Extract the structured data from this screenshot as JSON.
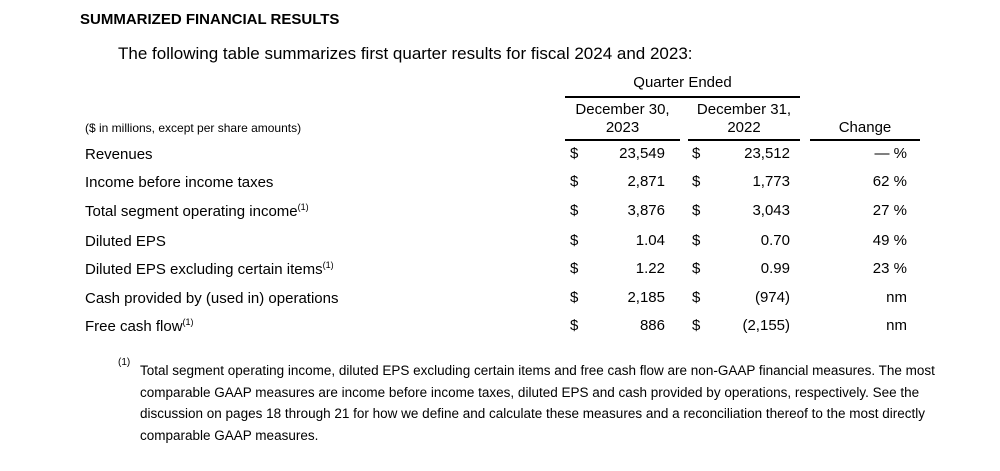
{
  "title": "SUMMARIZED FINANCIAL RESULTS",
  "subtitle": "The following table summarizes first quarter results for fiscal 2024 and 2023:",
  "table": {
    "group_header": "Quarter Ended",
    "col1": {
      "line1": "December 30,",
      "line2": "2023"
    },
    "col2": {
      "line1": "December 31,",
      "line2": "2022"
    },
    "col3": "Change",
    "units": "($ in millions, except per share amounts)",
    "rows": [
      {
        "label": "Revenues",
        "fn": "",
        "c1": "$",
        "v1": "23,549",
        "c2": "$",
        "v2": "23,512",
        "change": "— %"
      },
      {
        "label": "Income before income taxes",
        "fn": "",
        "c1": "$",
        "v1": "2,871",
        "c2": "$",
        "v2": "1,773",
        "change": "62 %"
      },
      {
        "label": "Total segment operating income",
        "fn": "(1)",
        "c1": "$",
        "v1": "3,876",
        "c2": "$",
        "v2": "3,043",
        "change": "27 %"
      },
      {
        "label": "Diluted EPS",
        "fn": "",
        "c1": "$",
        "v1": "1.04",
        "c2": "$",
        "v2": "0.70",
        "change": "49 %"
      },
      {
        "label": "Diluted EPS excluding certain items",
        "fn": "(1)",
        "c1": "$",
        "v1": "1.22",
        "c2": "$",
        "v2": "0.99",
        "change": "23 %"
      },
      {
        "label": "Cash provided by (used in) operations",
        "fn": "",
        "c1": "$",
        "v1": "2,185",
        "c2": "$",
        "v2": "(974)",
        "change": "nm"
      },
      {
        "label": "Free cash flow",
        "fn": "(1)",
        "c1": "$",
        "v1": "886",
        "c2": "$",
        "v2": "(2,155)",
        "change": "nm"
      }
    ]
  },
  "footnote": {
    "marker": "(1)",
    "text": "Total segment operating income, diluted EPS excluding certain items and free cash flow are non-GAAP financial measures. The most comparable GAAP measures are income before income taxes, diluted EPS and cash provided by operations, respectively. See the discussion on pages 18 through 21 for how we define and calculate these measures and a reconciliation thereof to the most directly comparable GAAP measures."
  }
}
